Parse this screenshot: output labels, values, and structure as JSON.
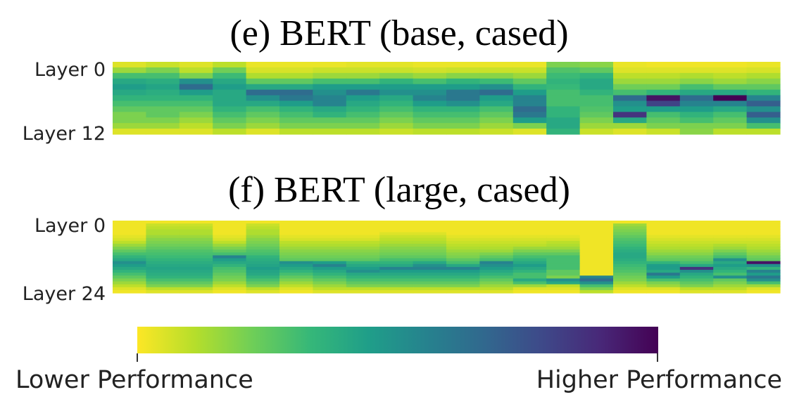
{
  "colorbar": {
    "low_label": "Lower Performance",
    "high_label": "Higher Performance",
    "colormap": "viridis_r",
    "stops": [
      "#fde725",
      "#b5de2b",
      "#6ece58",
      "#35b779",
      "#1f9e89",
      "#26828e",
      "#31688e",
      "#3e4989",
      "#482878",
      "#440154"
    ]
  },
  "chart_data": [
    {
      "type": "heatmap",
      "title": "(e) BERT (base, cased)",
      "ylabel_top": "Layer 0",
      "ylabel_bottom": "Layer 12",
      "layers": 13,
      "columns": 20,
      "value_range": [
        0,
        1
      ],
      "values": [
        [
          0.05,
          0.08,
          0.05,
          0.1,
          0.03,
          0.03,
          0.03,
          0.04,
          0.04,
          0.03,
          0.03,
          0.03,
          0.03,
          0.2,
          0.18,
          0.03,
          0.02,
          0.02,
          0.02,
          0.03
        ],
        [
          0.15,
          0.2,
          0.1,
          0.22,
          0.06,
          0.06,
          0.08,
          0.08,
          0.08,
          0.07,
          0.08,
          0.08,
          0.08,
          0.28,
          0.25,
          0.05,
          0.05,
          0.05,
          0.05,
          0.06
        ],
        [
          0.3,
          0.3,
          0.2,
          0.32,
          0.12,
          0.12,
          0.15,
          0.15,
          0.18,
          0.15,
          0.18,
          0.18,
          0.15,
          0.32,
          0.35,
          0.1,
          0.1,
          0.12,
          0.1,
          0.12
        ],
        [
          0.4,
          0.38,
          0.5,
          0.4,
          0.25,
          0.25,
          0.3,
          0.3,
          0.35,
          0.3,
          0.35,
          0.32,
          0.25,
          0.35,
          0.4,
          0.15,
          0.15,
          0.18,
          0.15,
          0.18
        ],
        [
          0.45,
          0.42,
          0.65,
          0.45,
          0.4,
          0.4,
          0.45,
          0.45,
          0.45,
          0.45,
          0.45,
          0.5,
          0.35,
          0.33,
          0.4,
          0.22,
          0.22,
          0.3,
          0.25,
          0.25
        ],
        [
          0.4,
          0.38,
          0.45,
          0.4,
          0.65,
          0.65,
          0.5,
          0.6,
          0.5,
          0.5,
          0.6,
          0.65,
          0.45,
          0.3,
          0.35,
          0.3,
          0.35,
          0.4,
          0.4,
          0.35
        ],
        [
          0.35,
          0.35,
          0.35,
          0.4,
          0.5,
          0.6,
          0.55,
          0.45,
          0.4,
          0.55,
          0.6,
          0.45,
          0.55,
          0.3,
          0.3,
          0.65,
          0.95,
          0.65,
          1.0,
          0.55
        ],
        [
          0.3,
          0.3,
          0.3,
          0.4,
          0.4,
          0.45,
          0.55,
          0.4,
          0.35,
          0.45,
          0.5,
          0.4,
          0.55,
          0.3,
          0.3,
          0.5,
          0.8,
          0.55,
          0.55,
          0.7
        ],
        [
          0.25,
          0.25,
          0.25,
          0.35,
          0.3,
          0.35,
          0.4,
          0.35,
          0.3,
          0.35,
          0.35,
          0.3,
          0.65,
          0.35,
          0.28,
          0.45,
          0.45,
          0.45,
          0.4,
          0.5
        ],
        [
          0.2,
          0.25,
          0.2,
          0.3,
          0.25,
          0.3,
          0.35,
          0.3,
          0.25,
          0.3,
          0.3,
          0.25,
          0.6,
          0.35,
          0.25,
          0.85,
          0.3,
          0.35,
          0.3,
          0.7
        ],
        [
          0.2,
          0.2,
          0.15,
          0.25,
          0.2,
          0.25,
          0.25,
          0.25,
          0.2,
          0.25,
          0.25,
          0.2,
          0.45,
          0.4,
          0.2,
          0.4,
          0.25,
          0.3,
          0.25,
          0.5
        ],
        [
          0.15,
          0.15,
          0.1,
          0.2,
          0.15,
          0.2,
          0.2,
          0.2,
          0.15,
          0.2,
          0.2,
          0.15,
          0.2,
          0.4,
          0.15,
          0.15,
          0.2,
          0.2,
          0.2,
          0.3
        ],
        [
          0.05,
          0.05,
          0.05,
          0.1,
          0.05,
          0.1,
          0.1,
          0.1,
          0.08,
          0.1,
          0.1,
          0.08,
          0.05,
          0.35,
          0.08,
          0.05,
          0.08,
          0.18,
          0.1,
          0.1
        ]
      ]
    },
    {
      "type": "heatmap",
      "title": "(f) BERT (large, cased)",
      "ylabel_top": "Layer 0",
      "ylabel_bottom": "Layer 24",
      "layers": 25,
      "columns": 20,
      "value_range": [
        0,
        1
      ],
      "values": [
        [
          0.02,
          0.02,
          0.02,
          0.02,
          0.02,
          0.02,
          0.02,
          0.02,
          0.02,
          0.02,
          0.02,
          0.02,
          0.02,
          0.02,
          0.02,
          0.02,
          0.02,
          0.02,
          0.02,
          0.02
        ],
        [
          0.02,
          0.08,
          0.08,
          0.02,
          0.08,
          0.02,
          0.02,
          0.02,
          0.02,
          0.02,
          0.02,
          0.02,
          0.02,
          0.02,
          0.02,
          0.15,
          0.02,
          0.02,
          0.02,
          0.02
        ],
        [
          0.02,
          0.1,
          0.1,
          0.02,
          0.1,
          0.02,
          0.02,
          0.02,
          0.02,
          0.02,
          0.02,
          0.02,
          0.02,
          0.02,
          0.02,
          0.18,
          0.02,
          0.02,
          0.02,
          0.02
        ],
        [
          0.02,
          0.12,
          0.12,
          0.02,
          0.12,
          0.02,
          0.02,
          0.02,
          0.02,
          0.02,
          0.02,
          0.02,
          0.02,
          0.02,
          0.02,
          0.2,
          0.02,
          0.02,
          0.02,
          0.02
        ],
        [
          0.02,
          0.12,
          0.12,
          0.02,
          0.12,
          0.02,
          0.02,
          0.02,
          0.05,
          0.05,
          0.02,
          0.02,
          0.02,
          0.02,
          0.02,
          0.22,
          0.02,
          0.02,
          0.02,
          0.02
        ],
        [
          0.04,
          0.15,
          0.15,
          0.04,
          0.15,
          0.04,
          0.04,
          0.04,
          0.08,
          0.08,
          0.04,
          0.04,
          0.04,
          0.04,
          0.02,
          0.25,
          0.04,
          0.04,
          0.04,
          0.04
        ],
        [
          0.06,
          0.18,
          0.18,
          0.06,
          0.18,
          0.06,
          0.06,
          0.06,
          0.1,
          0.1,
          0.06,
          0.06,
          0.06,
          0.06,
          0.02,
          0.28,
          0.06,
          0.06,
          0.06,
          0.06
        ],
        [
          0.1,
          0.2,
          0.2,
          0.1,
          0.2,
          0.1,
          0.1,
          0.1,
          0.12,
          0.12,
          0.08,
          0.08,
          0.08,
          0.1,
          0.02,
          0.3,
          0.08,
          0.08,
          0.08,
          0.08
        ],
        [
          0.15,
          0.22,
          0.22,
          0.15,
          0.22,
          0.12,
          0.12,
          0.12,
          0.15,
          0.15,
          0.1,
          0.1,
          0.1,
          0.12,
          0.02,
          0.32,
          0.1,
          0.1,
          0.12,
          0.1
        ],
        [
          0.2,
          0.25,
          0.25,
          0.2,
          0.25,
          0.15,
          0.15,
          0.15,
          0.18,
          0.18,
          0.12,
          0.12,
          0.15,
          0.15,
          0.02,
          0.35,
          0.12,
          0.12,
          0.15,
          0.12
        ],
        [
          0.25,
          0.28,
          0.28,
          0.25,
          0.28,
          0.18,
          0.18,
          0.18,
          0.2,
          0.2,
          0.15,
          0.15,
          0.2,
          0.2,
          0.02,
          0.38,
          0.15,
          0.15,
          0.2,
          0.15
        ],
        [
          0.3,
          0.3,
          0.3,
          0.3,
          0.3,
          0.2,
          0.2,
          0.2,
          0.22,
          0.22,
          0.18,
          0.2,
          0.25,
          0.25,
          0.02,
          0.4,
          0.18,
          0.18,
          0.25,
          0.18
        ],
        [
          0.35,
          0.32,
          0.32,
          0.55,
          0.35,
          0.22,
          0.22,
          0.22,
          0.25,
          0.25,
          0.2,
          0.25,
          0.3,
          0.3,
          0.02,
          0.4,
          0.22,
          0.22,
          0.3,
          0.22
        ],
        [
          0.4,
          0.35,
          0.35,
          0.45,
          0.38,
          0.25,
          0.25,
          0.25,
          0.3,
          0.3,
          0.25,
          0.3,
          0.35,
          0.3,
          0.02,
          0.38,
          0.25,
          0.25,
          0.5,
          0.25
        ],
        [
          0.5,
          0.38,
          0.38,
          0.4,
          0.4,
          0.5,
          0.45,
          0.35,
          0.35,
          0.4,
          0.3,
          0.55,
          0.4,
          0.3,
          0.02,
          0.35,
          0.35,
          0.3,
          0.4,
          0.95
        ],
        [
          0.45,
          0.4,
          0.4,
          0.35,
          0.42,
          0.45,
          0.55,
          0.4,
          0.4,
          0.5,
          0.4,
          0.5,
          0.45,
          0.3,
          0.02,
          0.32,
          0.45,
          0.4,
          0.45,
          0.5
        ],
        [
          0.4,
          0.42,
          0.42,
          0.3,
          0.45,
          0.4,
          0.45,
          0.45,
          0.55,
          0.55,
          0.55,
          0.45,
          0.4,
          0.3,
          0.02,
          0.3,
          0.45,
          0.85,
          0.4,
          0.35
        ],
        [
          0.35,
          0.4,
          0.4,
          0.28,
          0.42,
          0.35,
          0.4,
          0.5,
          0.45,
          0.45,
          0.45,
          0.4,
          0.35,
          0.25,
          0.02,
          0.28,
          0.4,
          0.5,
          0.35,
          0.55
        ],
        [
          0.3,
          0.38,
          0.38,
          0.25,
          0.4,
          0.3,
          0.35,
          0.4,
          0.4,
          0.4,
          0.4,
          0.35,
          0.3,
          0.25,
          0.02,
          0.25,
          0.6,
          0.4,
          0.3,
          0.45
        ],
        [
          0.25,
          0.35,
          0.35,
          0.22,
          0.35,
          0.25,
          0.3,
          0.35,
          0.35,
          0.35,
          0.35,
          0.3,
          0.3,
          0.2,
          0.55,
          0.22,
          0.45,
          0.35,
          0.5,
          0.6
        ],
        [
          0.2,
          0.3,
          0.3,
          0.2,
          0.3,
          0.2,
          0.25,
          0.3,
          0.3,
          0.3,
          0.3,
          0.25,
          0.4,
          0.5,
          0.65,
          0.2,
          0.3,
          0.3,
          0.25,
          0.5
        ],
        [
          0.15,
          0.25,
          0.25,
          0.15,
          0.25,
          0.15,
          0.2,
          0.25,
          0.25,
          0.25,
          0.25,
          0.2,
          0.3,
          0.4,
          0.5,
          0.15,
          0.2,
          0.25,
          0.2,
          0.3
        ],
        [
          0.1,
          0.2,
          0.2,
          0.1,
          0.2,
          0.1,
          0.15,
          0.2,
          0.2,
          0.2,
          0.2,
          0.15,
          0.15,
          0.1,
          0.3,
          0.1,
          0.15,
          0.2,
          0.15,
          0.15
        ],
        [
          0.05,
          0.1,
          0.1,
          0.05,
          0.1,
          0.05,
          0.1,
          0.1,
          0.1,
          0.1,
          0.1,
          0.1,
          0.05,
          0.05,
          0.2,
          0.05,
          0.05,
          0.1,
          0.1,
          0.05
        ],
        [
          0.02,
          0.05,
          0.05,
          0.02,
          0.05,
          0.02,
          0.05,
          0.05,
          0.05,
          0.05,
          0.05,
          0.05,
          0.02,
          0.02,
          0.1,
          0.02,
          0.02,
          0.05,
          0.05,
          0.02
        ]
      ]
    }
  ]
}
